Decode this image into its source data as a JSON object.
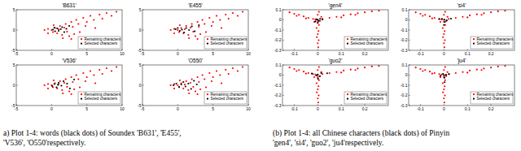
{
  "chart_data": [
    {
      "type": "scatter",
      "title": "'B631'",
      "xlim": [
        -5,
        10
      ],
      "ylim": [
        -5,
        5
      ],
      "xticks": [
        -5,
        0,
        5,
        10
      ],
      "yticks": [
        -5,
        0,
        5
      ],
      "legend": "lower right",
      "series": [
        {
          "name": "Remaining characters",
          "color": "#ff0000",
          "marker": "dot",
          "x": [
            -1,
            -0.5,
            0,
            0.2,
            0.5,
            0.8,
            1,
            1.2,
            1.5,
            1.8,
            2,
            2.2,
            2.5,
            2.8,
            3,
            3.2,
            3.5,
            3.8,
            4,
            4.5,
            4.8,
            5,
            5.5,
            6,
            6.2,
            6.8,
            7.2,
            7.8,
            8.5,
            9.2,
            -0.5,
            0.3,
            1.6,
            2.8
          ],
          "values": [
            0,
            0.3,
            0,
            -0.5,
            0.5,
            -0.8,
            0.2,
            1,
            -1.2,
            0.6,
            1.5,
            -0.4,
            -1.5,
            2,
            0.8,
            -1,
            2.5,
            1.5,
            -0.5,
            3,
            1,
            2,
            3.5,
            2.5,
            0.5,
            3.8,
            2.8,
            4.2,
            3.5,
            4.5,
            -0.8,
            1.2,
            -2,
            -2.2
          ]
        },
        {
          "name": "Selected characters",
          "color": "#000000",
          "marker": "dot",
          "x": [
            0.2,
            0.5,
            0.8,
            1,
            1.3,
            1.5,
            1.8,
            2.1,
            0.4,
            2.5
          ],
          "values": [
            0.1,
            -0.3,
            0.4,
            -0.2,
            0.2,
            0.7,
            -0.5,
            0.3,
            0.6,
            1
          ]
        }
      ]
    },
    {
      "type": "scatter",
      "title": "'E455'",
      "xlim": [
        -5,
        10
      ],
      "ylim": [
        -5,
        5
      ],
      "xticks": [
        -5,
        0,
        5,
        10
      ],
      "yticks": [
        -5,
        0,
        5
      ],
      "legend": "lower right",
      "series": [
        {
          "name": "Remaining characters",
          "color": "#ff0000",
          "marker": "dot",
          "x": [
            -1,
            -0.5,
            0,
            0.2,
            0.5,
            0.8,
            1,
            1.2,
            1.5,
            1.8,
            2,
            2.2,
            2.5,
            2.8,
            3,
            3.2,
            3.5,
            3.8,
            4,
            4.5,
            4.8,
            5,
            5.5,
            6,
            6.2,
            6.8,
            7.2,
            7.8,
            8.5,
            9.2,
            -0.5,
            0.3,
            1.6,
            2.8
          ],
          "values": [
            0,
            0.3,
            0,
            -0.5,
            0.5,
            -0.8,
            0.2,
            1,
            -1.2,
            0.6,
            1.5,
            -0.4,
            -1.5,
            2,
            0.8,
            -1,
            2.5,
            1.5,
            -0.5,
            3,
            1,
            2,
            3.5,
            2.5,
            0.5,
            3.8,
            2.8,
            4.2,
            3.5,
            4.5,
            -0.8,
            1.2,
            -2,
            -2.2
          ]
        },
        {
          "name": "Selected characters",
          "color": "#000000",
          "marker": "dot",
          "x": [
            -0.3,
            0,
            0.3,
            0.6,
            0.9,
            1.2,
            1.6,
            2,
            2.4,
            3
          ],
          "values": [
            0.2,
            0.5,
            -0.2,
            0.1,
            -0.6,
            0.5,
            0,
            0.9,
            -0.3,
            1.2
          ]
        }
      ]
    },
    {
      "type": "scatter",
      "title": "'V536'",
      "xlim": [
        -5,
        10
      ],
      "ylim": [
        -5,
        5
      ],
      "xticks": [
        -5,
        0,
        5,
        10
      ],
      "yticks": [
        -5,
        0,
        5
      ],
      "legend": "lower right",
      "series": [
        {
          "name": "Remaining characters",
          "color": "#ff0000",
          "marker": "dot",
          "x": [
            -1,
            -0.5,
            0,
            0.2,
            0.5,
            0.8,
            1,
            1.2,
            1.5,
            1.8,
            2,
            2.2,
            2.5,
            2.8,
            3,
            3.2,
            3.5,
            3.8,
            4,
            4.5,
            4.8,
            5,
            5.5,
            6,
            6.2,
            6.8,
            7.2,
            7.8,
            8.5,
            9.2,
            -0.5,
            0.3,
            1.6,
            2.8
          ],
          "values": [
            0,
            0.3,
            0,
            -0.5,
            0.5,
            -0.8,
            0.2,
            1,
            -1.2,
            0.6,
            1.5,
            -0.4,
            -1.5,
            2,
            0.8,
            -1,
            2.5,
            1.5,
            -0.5,
            3,
            1,
            2,
            3.5,
            2.5,
            0.5,
            3.8,
            2.8,
            4.2,
            3.5,
            4.5,
            -0.8,
            1.2,
            -2,
            -2.2
          ]
        },
        {
          "name": "Selected characters",
          "color": "#000000",
          "marker": "dot",
          "x": [
            0.1,
            0.4,
            0.7,
            1,
            1.4,
            1.7,
            2.2,
            2.6,
            3.2,
            0.9
          ],
          "values": [
            -0.2,
            0.3,
            -0.5,
            0.6,
            -0.1,
            1,
            0.4,
            -0.8,
            1.4,
            0.1
          ]
        }
      ]
    },
    {
      "type": "scatter",
      "title": "'O550'",
      "xlim": [
        -5,
        10
      ],
      "ylim": [
        -5,
        5
      ],
      "xticks": [
        -5,
        0,
        5,
        10
      ],
      "yticks": [
        -5,
        0,
        5
      ],
      "legend": "lower right",
      "series": [
        {
          "name": "Remaining characters",
          "color": "#ff0000",
          "marker": "dot",
          "x": [
            -1,
            -0.5,
            0,
            0.2,
            0.5,
            0.8,
            1,
            1.2,
            1.5,
            1.8,
            2,
            2.2,
            2.5,
            2.8,
            3,
            3.2,
            3.5,
            3.8,
            4,
            4.5,
            4.8,
            5,
            5.5,
            6,
            6.2,
            6.8,
            7.2,
            7.8,
            8.5,
            9.2,
            -0.5,
            0.3,
            1.6,
            2.8
          ],
          "values": [
            0,
            0.3,
            0,
            -0.5,
            0.5,
            -0.8,
            0.2,
            1,
            -1.2,
            0.6,
            1.5,
            -0.4,
            -1.5,
            2,
            0.8,
            -1,
            2.5,
            1.5,
            -0.5,
            3,
            1,
            2,
            3.5,
            2.5,
            0.5,
            3.8,
            2.8,
            4.2,
            3.5,
            4.5,
            -0.8,
            1.2,
            -2,
            -2.2
          ]
        },
        {
          "name": "Selected characters",
          "color": "#000000",
          "marker": "dot",
          "x": [
            -0.6,
            -0.2,
            0.2,
            0.5,
            0.8,
            1.1,
            1.5,
            1.9,
            2.3,
            2.7
          ],
          "values": [
            0,
            0.4,
            -0.4,
            0.2,
            0.8,
            -0.3,
            0.4,
            -0.9,
            1.1,
            0.2
          ]
        }
      ]
    },
    {
      "type": "scatter",
      "title": "'gen4'",
      "xlim": [
        -0.15,
        0.3
      ],
      "ylim": [
        -0.3,
        0.1
      ],
      "xticks": [
        -0.1,
        0,
        0.1,
        0.2
      ],
      "yticks": [
        -0.3,
        -0.2,
        -0.1,
        0,
        0.1
      ],
      "legend": "lower right",
      "series": [
        {
          "name": "Remaining characters",
          "color": "#ff0000",
          "marker": "dot",
          "x": [
            0,
            0.005,
            -0.005,
            0.003,
            0,
            -0.004,
            0.004,
            0,
            0.002,
            -0.02,
            -0.04,
            -0.06,
            -0.08,
            -0.1,
            -0.12,
            -0.05,
            -0.09,
            0.02,
            0.05,
            0.08,
            0.11,
            0.14,
            0.17,
            0.2,
            0.23,
            0.26,
            0.1,
            0.16,
            0,
            0.01,
            -0.01,
            0.015,
            -0.015,
            0,
            0.005
          ],
          "values": [
            -0.02,
            -0.05,
            -0.08,
            -0.11,
            -0.14,
            -0.17,
            -0.2,
            -0.23,
            -0.27,
            0.01,
            0.02,
            0.035,
            0.05,
            0.06,
            0.075,
            0.015,
            0.04,
            0.01,
            0.02,
            0.03,
            0.045,
            0.055,
            0.065,
            0.075,
            0.085,
            0.09,
            0.025,
            0.05,
            0,
            -0.01,
            0.005,
            0.03,
            -0.02,
            0.05,
            0.08
          ]
        },
        {
          "name": "Selected characters",
          "color": "#000000",
          "marker": "dot",
          "x": [
            0,
            0.005,
            -0.005,
            0.01,
            0,
            0.02,
            -0.01
          ],
          "values": [
            0,
            -0.01,
            0.005,
            0.01,
            -0.03,
            0.005,
            -0.015
          ]
        }
      ]
    },
    {
      "type": "scatter",
      "title": "'si4'",
      "xlim": [
        -0.15,
        0.3
      ],
      "ylim": [
        -0.3,
        0.1
      ],
      "xticks": [
        -0.1,
        0,
        0.1,
        0.2
      ],
      "yticks": [
        -0.3,
        -0.2,
        -0.1,
        0,
        0.1
      ],
      "legend": "lower right",
      "series": [
        {
          "name": "Remaining characters",
          "color": "#ff0000",
          "marker": "dot",
          "x": [
            0,
            0.005,
            -0.005,
            0.003,
            0,
            -0.004,
            0.004,
            0,
            0.002,
            -0.02,
            -0.04,
            -0.06,
            -0.08,
            -0.1,
            -0.12,
            -0.05,
            -0.09,
            0.02,
            0.05,
            0.08,
            0.11,
            0.14,
            0.17,
            0.2,
            0.23,
            0.26,
            0.1,
            0.16,
            0,
            0.01,
            -0.01,
            0.015,
            -0.015,
            0,
            0.005
          ],
          "values": [
            -0.02,
            -0.05,
            -0.08,
            -0.11,
            -0.14,
            -0.17,
            -0.2,
            -0.23,
            -0.27,
            0.01,
            0.02,
            0.035,
            0.05,
            0.06,
            0.075,
            0.015,
            0.04,
            0.01,
            0.02,
            0.03,
            0.045,
            0.055,
            0.065,
            0.075,
            0.085,
            0.09,
            0.025,
            0.05,
            0,
            -0.01,
            0.005,
            0.03,
            -0.02,
            0.05,
            0.08
          ]
        },
        {
          "name": "Selected characters",
          "color": "#000000",
          "marker": "dot",
          "x": [
            0.002,
            -0.008,
            0.012,
            0.004,
            0.03,
            -0.02,
            0
          ],
          "values": [
            0.002,
            0.01,
            -0.005,
            -0.02,
            0.012,
            0.008,
            -0.05
          ]
        }
      ]
    },
    {
      "type": "scatter",
      "title": "'guo2'",
      "xlim": [
        -0.15,
        0.3
      ],
      "ylim": [
        -0.3,
        0.1
      ],
      "xticks": [
        -0.1,
        0,
        0.1,
        0.2
      ],
      "yticks": [
        -0.3,
        -0.2,
        -0.1,
        0,
        0.1
      ],
      "legend": "lower right",
      "series": [
        {
          "name": "Remaining characters",
          "color": "#ff0000",
          "marker": "dot",
          "x": [
            0,
            0.005,
            -0.005,
            0.003,
            0,
            -0.004,
            0.004,
            0,
            0.002,
            -0.02,
            -0.04,
            -0.06,
            -0.08,
            -0.1,
            -0.12,
            -0.05,
            -0.09,
            0.02,
            0.05,
            0.08,
            0.11,
            0.14,
            0.17,
            0.2,
            0.23,
            0.26,
            0.1,
            0.16,
            0,
            0.01,
            -0.01,
            0.015,
            -0.015,
            0,
            0.005
          ],
          "values": [
            -0.02,
            -0.05,
            -0.08,
            -0.11,
            -0.14,
            -0.17,
            -0.2,
            -0.23,
            -0.27,
            0.01,
            0.02,
            0.035,
            0.05,
            0.06,
            0.075,
            0.015,
            0.04,
            0.01,
            0.02,
            0.03,
            0.045,
            0.055,
            0.065,
            0.075,
            0.085,
            0.09,
            0.025,
            0.05,
            0,
            -0.01,
            0.005,
            0.03,
            -0.02,
            0.05,
            0.08
          ]
        },
        {
          "name": "Selected characters",
          "color": "#000000",
          "marker": "dot",
          "x": [
            0,
            0.008,
            -0.006,
            0.015,
            0.001,
            -0.025,
            0.04
          ],
          "values": [
            0.005,
            -0.012,
            -0.004,
            0.02,
            -0.035,
            0.015,
            0.018
          ]
        }
      ]
    },
    {
      "type": "scatter",
      "title": "'ju4'",
      "xlim": [
        -0.15,
        0.3
      ],
      "ylim": [
        -0.3,
        0.1
      ],
      "xticks": [
        -0.1,
        0,
        0.1,
        0.2
      ],
      "yticks": [
        -0.3,
        -0.2,
        -0.1,
        0,
        0.1
      ],
      "legend": "lower right",
      "series": [
        {
          "name": "Remaining characters",
          "color": "#ff0000",
          "marker": "dot",
          "x": [
            0,
            0.005,
            -0.005,
            0.003,
            0,
            -0.004,
            0.004,
            0,
            0.002,
            -0.02,
            -0.04,
            -0.06,
            -0.08,
            -0.1,
            -0.12,
            -0.05,
            -0.09,
            0.02,
            0.05,
            0.08,
            0.11,
            0.14,
            0.17,
            0.2,
            0.23,
            0.26,
            0.1,
            0.16,
            0,
            0.01,
            -0.01,
            0.015,
            -0.015,
            0,
            0.005
          ],
          "values": [
            -0.02,
            -0.05,
            -0.08,
            -0.11,
            -0.14,
            -0.17,
            -0.2,
            -0.23,
            -0.27,
            0.01,
            0.02,
            0.035,
            0.05,
            0.06,
            0.075,
            0.015,
            0.04,
            0.01,
            0.02,
            0.03,
            0.045,
            0.055,
            0.065,
            0.075,
            0.085,
            0.09,
            0.025,
            0.05,
            0,
            -0.01,
            0.005,
            0.03,
            -0.02,
            0.05,
            0.08
          ]
        },
        {
          "name": "Selected characters",
          "color": "#000000",
          "marker": "dot",
          "x": [
            0.001,
            -0.004,
            0.009,
            0.002,
            0.022,
            -0.015,
            0.003
          ],
          "values": [
            -0.002,
            0.012,
            0.003,
            -0.025,
            0.01,
            -0.008,
            -0.07
          ]
        }
      ]
    }
  ],
  "captions": [
    [
      "a) Plot 1-4: words (black dots) of Soundex 'B631', 'E455',",
      "'V536', 'O550'respectively."
    ],
    [
      "(b) Plot 1-4: all Chinese characters (black dots) of Pinyin",
      "'gen4', 'si4', 'guo2', 'ju4'respectively."
    ]
  ]
}
